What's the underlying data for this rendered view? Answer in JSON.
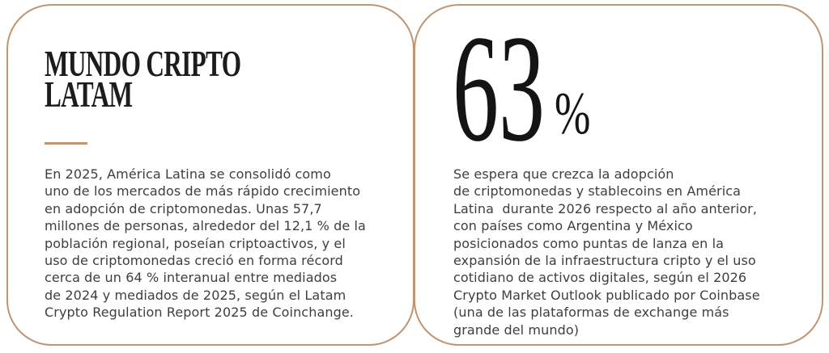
{
  "cards": [
    {
      "title": "MUNDO CRIPTO\nLATAM",
      "body": "En 2025, América Latina se consolidó como\nuno de los mercados de más rápido crecimiento\nen adopción de criptomonedas. Unas 57,7\nmillones de personas, alrededor del 12,1 % de la\npoblación regional, poseían criptoactivos, y el\nuso de criptomonedas creció en forma récord\ncerca de un 64 % interanual entre mediados\nde 2024 y mediados de 2025, según el Latam\nCrypto Regulation Report 2025 de Coinchange."
    },
    {
      "stat_value": "63",
      "stat_unit": "%",
      "body": "Se espera que crezca la adopción\nde criptomonedas y stablecoins en América\nLatina  durante 2026 respecto al año anterior,\ncon países como Argentina y México\nposicionados como puntas de lanza en la\nexpansión de la infraestructura cripto y el uso\ncotidiano de activos digitales, según el 2026\nCrypto Market Outlook publicado por Coinbase\n(una de las plataformas de exchange más\ngrande del mundo)"
    }
  ],
  "colors": {
    "card_border": "#c2946f",
    "divider": "#c2946f",
    "title_text": "#1c1c1c",
    "body_text": "#3e3e3e",
    "stat_text": "#141414",
    "background": "#ffffff"
  }
}
